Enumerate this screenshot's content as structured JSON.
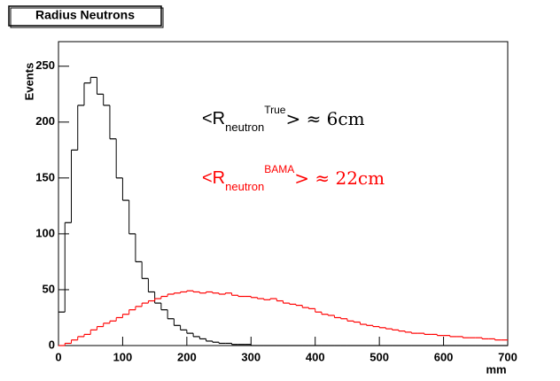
{
  "chart_data": {
    "type": "histogram",
    "title": "Radius Neutrons",
    "x_label": "mm",
    "y_label": "Events",
    "bins": [
      0,
      10,
      20,
      30,
      40,
      50,
      60,
      70,
      80,
      90,
      100,
      110,
      120,
      130,
      140,
      150,
      160,
      170,
      180,
      190,
      200,
      210,
      220,
      230,
      240,
      250,
      260,
      270,
      280,
      290,
      300,
      310,
      320,
      330,
      340,
      350,
      360,
      370,
      380,
      390,
      400,
      410,
      420,
      430,
      440,
      450,
      460,
      470,
      480,
      490,
      500,
      510,
      520,
      530,
      540,
      550,
      560,
      570,
      580,
      590,
      600,
      610,
      620,
      630,
      640,
      650,
      660,
      670,
      680,
      690,
      700
    ],
    "series": [
      {
        "name": "True",
        "color": "#000000",
        "values": [
          30,
          110,
          175,
          215,
          235,
          240,
          225,
          215,
          185,
          150,
          130,
          100,
          75,
          60,
          48,
          38,
          32,
          24,
          18,
          14,
          11,
          8,
          6,
          4,
          3,
          2,
          2,
          1,
          1,
          1,
          0,
          0,
          0,
          0,
          0,
          0,
          0,
          0,
          0,
          0,
          0,
          0,
          0,
          0,
          0,
          0,
          0,
          0,
          0,
          0,
          0,
          0,
          0,
          0,
          0,
          0,
          0,
          0,
          0,
          0,
          0,
          0,
          0,
          0,
          0,
          0,
          0,
          0,
          0,
          0
        ]
      },
      {
        "name": "BAMA",
        "color": "#ff0000",
        "values": [
          0,
          2,
          5,
          8,
          10,
          14,
          17,
          20,
          22,
          25,
          28,
          32,
          35,
          38,
          40,
          42,
          44,
          46,
          47,
          48,
          49,
          48,
          47,
          48,
          47,
          46,
          47,
          45,
          44,
          44,
          43,
          42,
          41,
          42,
          40,
          38,
          37,
          36,
          34,
          33,
          30,
          28,
          27,
          25,
          24,
          22,
          21,
          19,
          18,
          17,
          16,
          15,
          14,
          13,
          12,
          11,
          11,
          10,
          10,
          9,
          9,
          8,
          8,
          7,
          7,
          7,
          6,
          6,
          5,
          5
        ]
      }
    ],
    "xlim": [
      0,
      700
    ],
    "xticks": [
      0,
      100,
      200,
      300,
      400,
      500,
      600,
      700
    ],
    "ylim": [
      0,
      272
    ],
    "yticks": [
      0,
      50,
      100,
      150,
      200,
      250
    ],
    "annotations": [
      {
        "text": "<R",
        "sub": "neutron",
        "sup": "True",
        "tail": "> ≈ 6cm",
        "color": "#000000"
      },
      {
        "text": "<R",
        "sub": "neutron",
        "sup": "BAMA",
        "tail": "> ≈ 22cm",
        "color": "#ff0000"
      }
    ]
  }
}
